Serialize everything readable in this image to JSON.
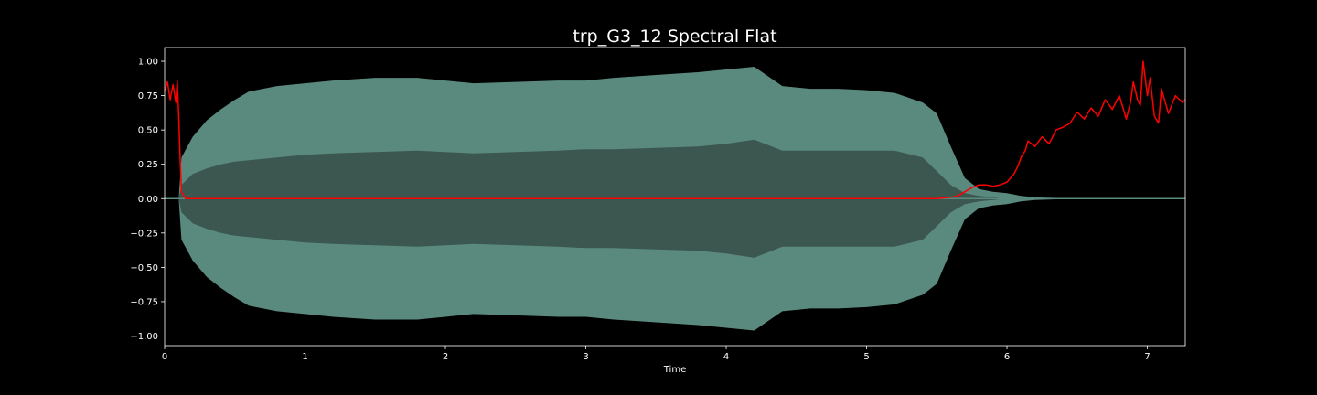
{
  "chart_data": {
    "type": "line",
    "title": "trp_G3_12 Spectral Flat",
    "xlabel": "Time",
    "ylabel": "",
    "xlim": [
      0,
      7.27
    ],
    "ylim": [
      -1.07,
      1.1
    ],
    "x_ticks": [
      0,
      1,
      2,
      3,
      4,
      5,
      6,
      7
    ],
    "x_tick_labels": [
      "0",
      "1",
      "2",
      "3",
      "4",
      "5",
      "6",
      "7"
    ],
    "y_ticks": [
      1.0,
      0.75,
      0.5,
      0.25,
      0.0,
      -0.25,
      -0.5,
      -0.75,
      -1.0
    ],
    "y_tick_labels": [
      "1.00",
      "0.75",
      "0.50",
      "0.25",
      "0.00",
      "−0.25",
      "−0.50",
      "−0.75",
      "−1.00"
    ],
    "grid": false,
    "colors": {
      "background": "#000000",
      "axes_edge": "#ffffff",
      "waveform_outer": "#5a8a7e",
      "waveform_inner": "#3b5750",
      "spectral_flatness": "#ff0000"
    },
    "series": [
      {
        "type": "waveform_envelope",
        "x": [
          0.0,
          0.1,
          0.12,
          0.2,
          0.3,
          0.4,
          0.5,
          0.6,
          0.8,
          1.0,
          1.2,
          1.5,
          1.8,
          2.0,
          2.2,
          2.5,
          2.8,
          3.0,
          3.2,
          3.5,
          3.8,
          4.0,
          4.2,
          4.4,
          4.6,
          4.8,
          5.0,
          5.2,
          5.4,
          5.5,
          5.6,
          5.7,
          5.8,
          5.9,
          6.0,
          6.1,
          6.2,
          6.5,
          7.0,
          7.27
        ],
        "outer": [
          0.0,
          0.0,
          0.3,
          0.45,
          0.57,
          0.65,
          0.72,
          0.78,
          0.82,
          0.84,
          0.86,
          0.88,
          0.88,
          0.86,
          0.84,
          0.85,
          0.86,
          0.86,
          0.88,
          0.9,
          0.92,
          0.94,
          0.96,
          0.82,
          0.8,
          0.8,
          0.79,
          0.77,
          0.7,
          0.62,
          0.38,
          0.15,
          0.07,
          0.05,
          0.04,
          0.02,
          0.01,
          0.0,
          0.0,
          0.0
        ],
        "inner": [
          0.0,
          0.0,
          0.1,
          0.18,
          0.22,
          0.25,
          0.27,
          0.28,
          0.3,
          0.32,
          0.33,
          0.34,
          0.35,
          0.34,
          0.33,
          0.34,
          0.35,
          0.36,
          0.36,
          0.37,
          0.38,
          0.4,
          0.43,
          0.35,
          0.35,
          0.35,
          0.35,
          0.35,
          0.3,
          0.2,
          0.1,
          0.04,
          0.02,
          0.01,
          0.0,
          0.0,
          0.0,
          0.0,
          0.0,
          0.0
        ]
      },
      {
        "type": "line",
        "x": [
          0.0,
          0.02,
          0.04,
          0.06,
          0.08,
          0.09,
          0.1,
          0.11,
          0.12,
          0.15,
          0.5,
          1.0,
          2.0,
          3.0,
          4.0,
          5.0,
          5.5,
          5.6,
          5.65,
          5.7,
          5.75,
          5.8,
          5.85,
          5.9,
          5.95,
          6.0,
          6.05,
          6.08,
          6.1,
          6.13,
          6.15,
          6.2,
          6.25,
          6.3,
          6.35,
          6.4,
          6.45,
          6.5,
          6.55,
          6.6,
          6.65,
          6.7,
          6.75,
          6.8,
          6.85,
          6.88,
          6.9,
          6.93,
          6.95,
          6.97,
          7.0,
          7.02,
          7.05,
          7.08,
          7.1,
          7.15,
          7.2,
          7.25,
          7.27
        ],
        "y": [
          0.78,
          0.85,
          0.72,
          0.83,
          0.7,
          0.86,
          0.6,
          0.3,
          0.05,
          0.0,
          0.0,
          0.0,
          0.0,
          0.0,
          0.0,
          0.0,
          0.0,
          0.01,
          0.02,
          0.05,
          0.08,
          0.1,
          0.1,
          0.09,
          0.1,
          0.12,
          0.18,
          0.24,
          0.3,
          0.35,
          0.42,
          0.38,
          0.45,
          0.4,
          0.5,
          0.52,
          0.55,
          0.63,
          0.58,
          0.66,
          0.6,
          0.72,
          0.65,
          0.75,
          0.58,
          0.7,
          0.85,
          0.72,
          0.68,
          1.0,
          0.75,
          0.88,
          0.6,
          0.55,
          0.8,
          0.62,
          0.75,
          0.7,
          0.72
        ]
      }
    ]
  }
}
